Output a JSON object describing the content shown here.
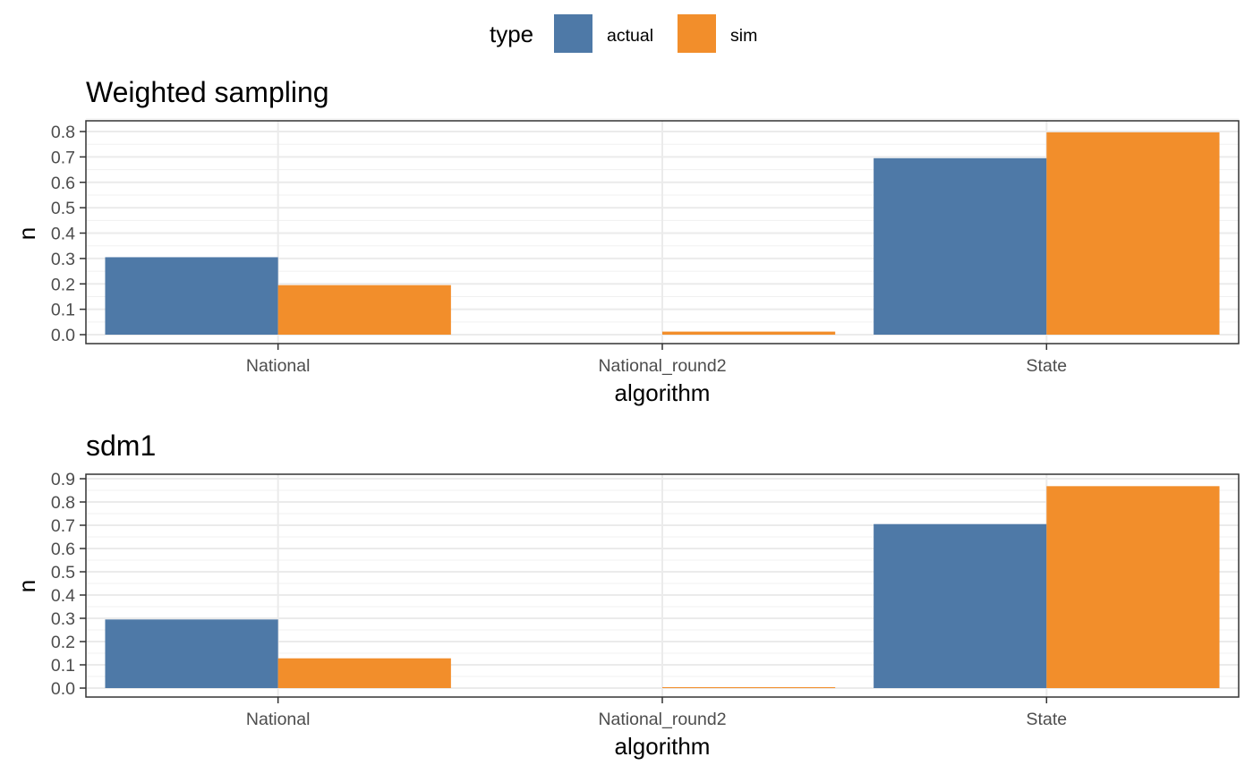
{
  "legend": {
    "title": "type",
    "items": [
      {
        "label": "actual",
        "color": "#4E79A7"
      },
      {
        "label": "sim",
        "color": "#F28E2B"
      }
    ]
  },
  "chart_data": [
    {
      "type": "bar",
      "title": "Weighted sampling",
      "xlabel": "algorithm",
      "ylabel": "n",
      "categories": [
        "National",
        "National_round2",
        "State"
      ],
      "series": [
        {
          "name": "actual",
          "values": [
            0.305,
            0,
            0.695
          ]
        },
        {
          "name": "sim",
          "values": [
            0.195,
            0.012,
            0.797
          ]
        }
      ],
      "ylim": [
        0,
        0.8
      ],
      "yticks": [
        "0.0",
        "0.1",
        "0.2",
        "0.3",
        "0.4",
        "0.5",
        "0.6",
        "0.7",
        "0.8"
      ],
      "grid": true
    },
    {
      "type": "bar",
      "title": "sdm1",
      "xlabel": "algorithm",
      "ylabel": "n",
      "categories": [
        "National",
        "National_round2",
        "State"
      ],
      "series": [
        {
          "name": "actual",
          "values": [
            0.295,
            0,
            0.705
          ]
        },
        {
          "name": "sim",
          "values": [
            0.128,
            0.004,
            0.868
          ]
        }
      ],
      "ylim": [
        0,
        0.9
      ],
      "yticks": [
        "0.0",
        "0.1",
        "0.2",
        "0.3",
        "0.4",
        "0.5",
        "0.6",
        "0.7",
        "0.8",
        "0.9"
      ],
      "grid": true
    }
  ]
}
